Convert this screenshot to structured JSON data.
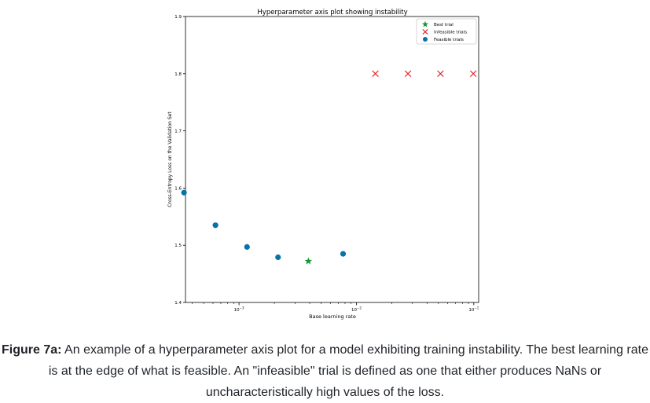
{
  "chart_data": {
    "type": "scatter",
    "title": "Hyperparameter axis plot showing instability",
    "xlabel": "Base learning rate",
    "ylabel": "Cross-Entropy Loss on the Validation Set",
    "x_scale": "log",
    "xlim": [
      0.00035,
      0.11
    ],
    "ylim": [
      1.4,
      1.9
    ],
    "y_ticks": [
      "1.4",
      "1.5",
      "1.6",
      "1.7",
      "1.8",
      "1.9"
    ],
    "x_ticks": [
      {
        "value": 0.001,
        "base": "10",
        "exp": "−3"
      },
      {
        "value": 0.01,
        "base": "10",
        "exp": "−2"
      },
      {
        "value": 0.1,
        "base": "10",
        "exp": "−1"
      }
    ],
    "grid": false,
    "legend_position": "top-right",
    "series": [
      {
        "name": "Best trial",
        "marker": "star",
        "color": "#119933",
        "points": [
          {
            "x": 0.0039,
            "y": 1.472
          }
        ]
      },
      {
        "name": "Infeasible trials",
        "marker": "x",
        "color": "#e0262b",
        "points": [
          {
            "x": 0.0145,
            "y": 1.8
          },
          {
            "x": 0.0275,
            "y": 1.8
          },
          {
            "x": 0.052,
            "y": 1.8
          },
          {
            "x": 0.099,
            "y": 1.8
          }
        ]
      },
      {
        "name": "Feasible trials",
        "marker": "circle",
        "color": "#0a72a8",
        "points": [
          {
            "x": 0.00034,
            "y": 1.592
          },
          {
            "x": 0.00063,
            "y": 1.535
          },
          {
            "x": 0.00117,
            "y": 1.497
          },
          {
            "x": 0.00215,
            "y": 1.479
          },
          {
            "x": 0.0077,
            "y": 1.485
          }
        ]
      }
    ]
  },
  "caption": {
    "label": "Figure 7a:",
    "text": " An example of a hyperparameter axis plot for a model exhibiting training instability. The best learning rate is at the edge of what is feasible. An \"infeasible\" trial is defined as one that either produces NaNs or uncharacteristically high values of the loss."
  }
}
